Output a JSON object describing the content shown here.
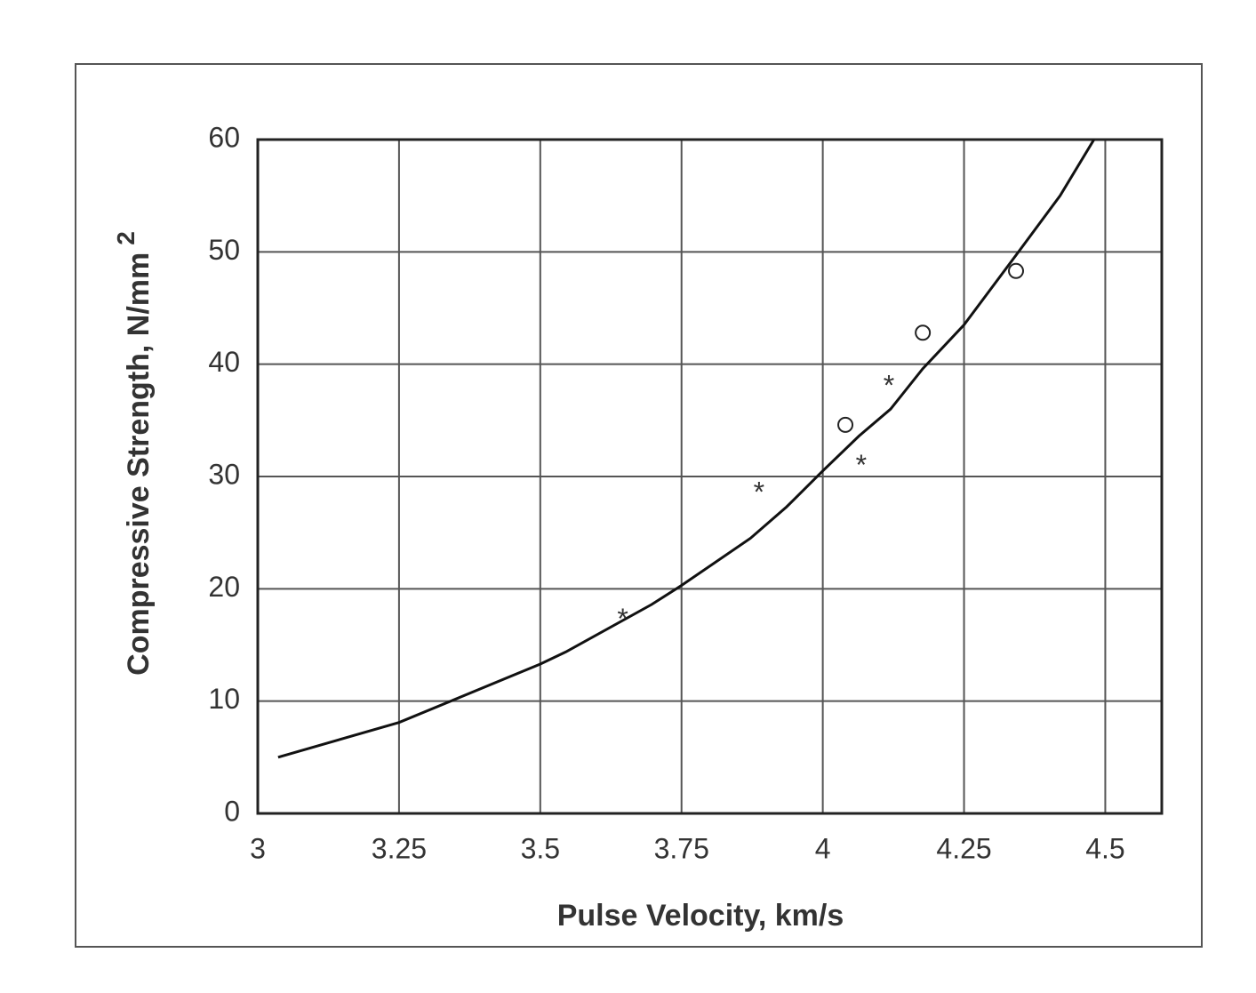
{
  "chart_data": {
    "type": "line",
    "xlabel": "Pulse Velocity,  km/s",
    "ylabel": "Compressive Strength, N/mm",
    "ylabel_sup": "2",
    "xlim": [
      3,
      4.6
    ],
    "xticks": [
      3,
      3.25,
      3.5,
      3.75,
      4,
      4.25,
      4.5
    ],
    "ylim": [
      0,
      60
    ],
    "yticks": [
      0,
      10,
      20,
      30,
      40,
      50,
      60
    ],
    "grid": true,
    "series": [
      {
        "marker": "none",
        "color": "#111111",
        "x": [
          3.036,
          3.25,
          3.5,
          3.546,
          3.697,
          3.75,
          3.872,
          3.936,
          4.0,
          4.064,
          4.12,
          4.177,
          4.25,
          4.339,
          4.42,
          4.48
        ],
        "values": [
          5.0,
          8.1,
          13.3,
          14.4,
          18.6,
          20.3,
          24.5,
          27.3,
          30.5,
          33.6,
          36.0,
          39.6,
          43.5,
          49.5,
          55.0,
          60
        ]
      },
      {
        "marker": "star",
        "color": "#222222",
        "x": [
          3.646,
          3.887,
          4.068,
          4.117
        ],
        "values": [
          17.6,
          28.9,
          31.3,
          38.4
        ]
      },
      {
        "marker": "circle",
        "color": "#222222",
        "x": [
          4.04,
          4.177,
          4.342
        ],
        "values": [
          34.6,
          42.8,
          48.3
        ]
      }
    ]
  }
}
